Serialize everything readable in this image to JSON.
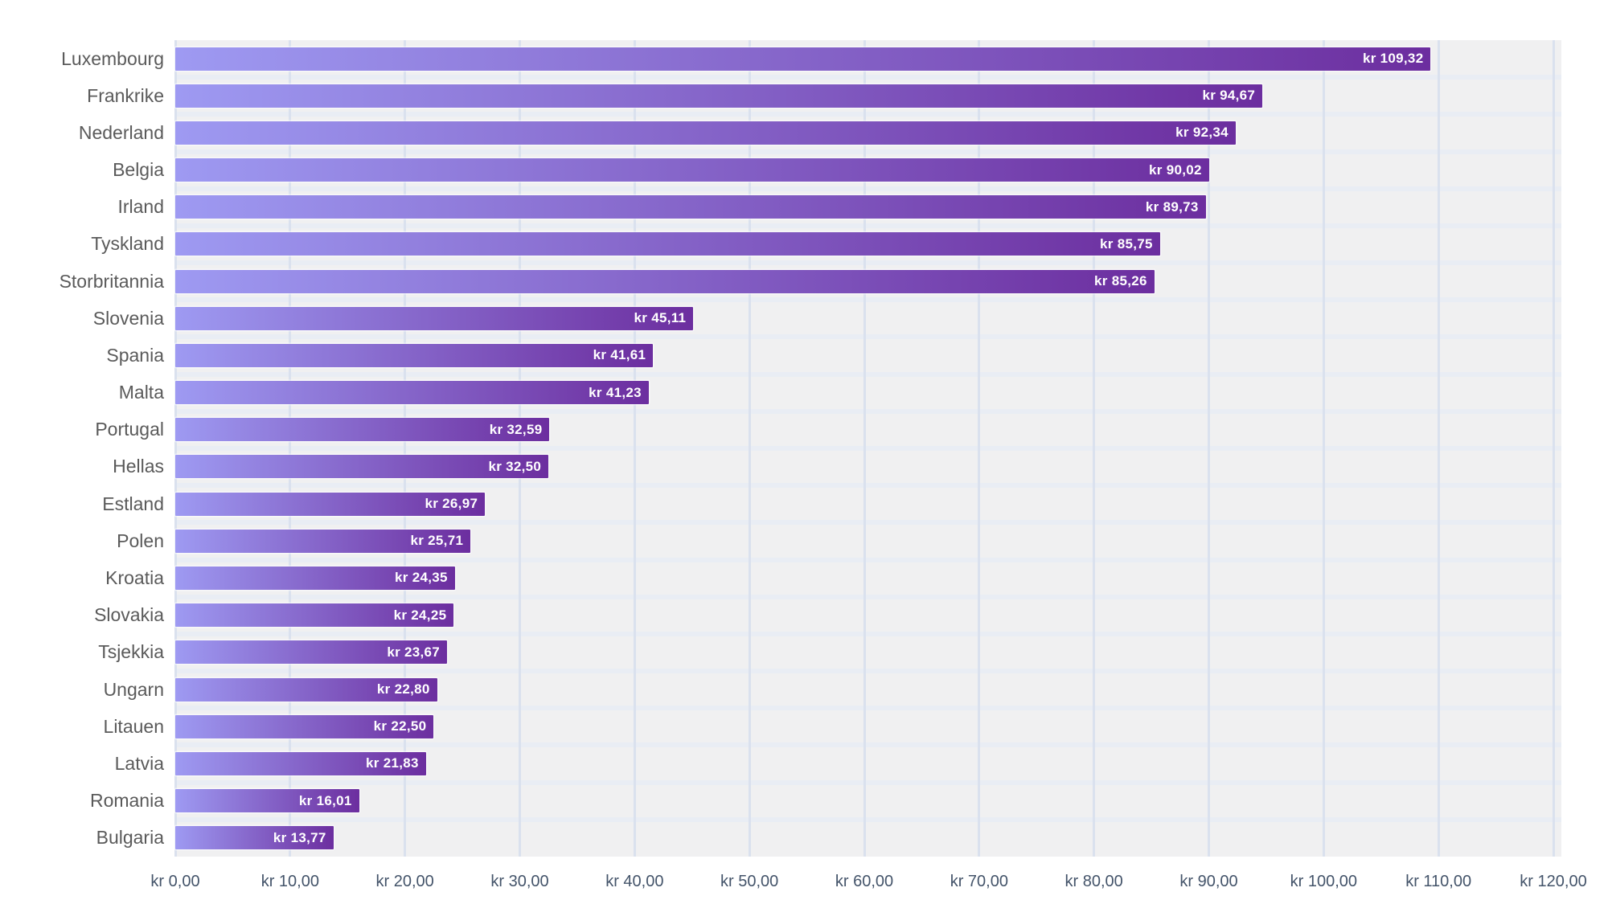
{
  "chart_data": {
    "type": "bar",
    "orientation": "horizontal",
    "title": "",
    "xlabel": "",
    "ylabel": "",
    "xlim": [
      0,
      120
    ],
    "x_tick_step": 10,
    "grid": true,
    "legend": false,
    "categories": [
      "Luxembourg",
      "Frankrike",
      "Nederland",
      "Belgia",
      "Irland",
      "Tyskland",
      "Storbritannia",
      "Slovenia",
      "Spania",
      "Malta",
      "Portugal",
      "Hellas",
      "Estland",
      "Polen",
      "Kroatia",
      "Slovakia",
      "Tsjekkia",
      "Ungarn",
      "Litauen",
      "Latvia",
      "Romania",
      "Bulgaria"
    ],
    "values": [
      109.32,
      94.67,
      92.34,
      90.02,
      89.73,
      85.75,
      85.26,
      45.11,
      41.61,
      41.23,
      32.59,
      32.5,
      26.97,
      25.71,
      24.35,
      24.25,
      23.67,
      22.8,
      22.5,
      21.83,
      16.01,
      13.77
    ],
    "value_labels": [
      "kr 109,32",
      "kr 94,67",
      "kr 92,34",
      "kr 90,02",
      "kr 89,73",
      "kr 85,75",
      "kr 85,26",
      "kr 45,11",
      "kr 41,61",
      "kr 41,23",
      "kr 32,59",
      "kr 32,50",
      "kr 26,97",
      "kr 25,71",
      "kr 24,35",
      "kr 24,25",
      "kr 23,67",
      "kr 22,80",
      "kr 22,50",
      "kr 21,83",
      "kr 16,01",
      "kr 13,77"
    ],
    "x_tick_labels": [
      "kr 0,00",
      "kr 10,00",
      "kr 20,00",
      "kr 30,00",
      "kr 40,00",
      "kr 50,00",
      "kr 60,00",
      "kr 70,00",
      "kr 80,00",
      "kr 90,00",
      "kr 100,00",
      "kr 110,00",
      "kr 120,00"
    ]
  },
  "colors": {
    "bar_gradient_start": "#9e9af2",
    "bar_gradient_end": "#6c2e9f",
    "plot_background": "#f0f0f1",
    "vertical_gridline": "#dae1ee",
    "horizontal_gridline": "#e9edf4",
    "category_label": "#5a5a5a",
    "tick_label": "#44546a",
    "value_label": "#ffffff",
    "page_background": "#ffffff"
  }
}
